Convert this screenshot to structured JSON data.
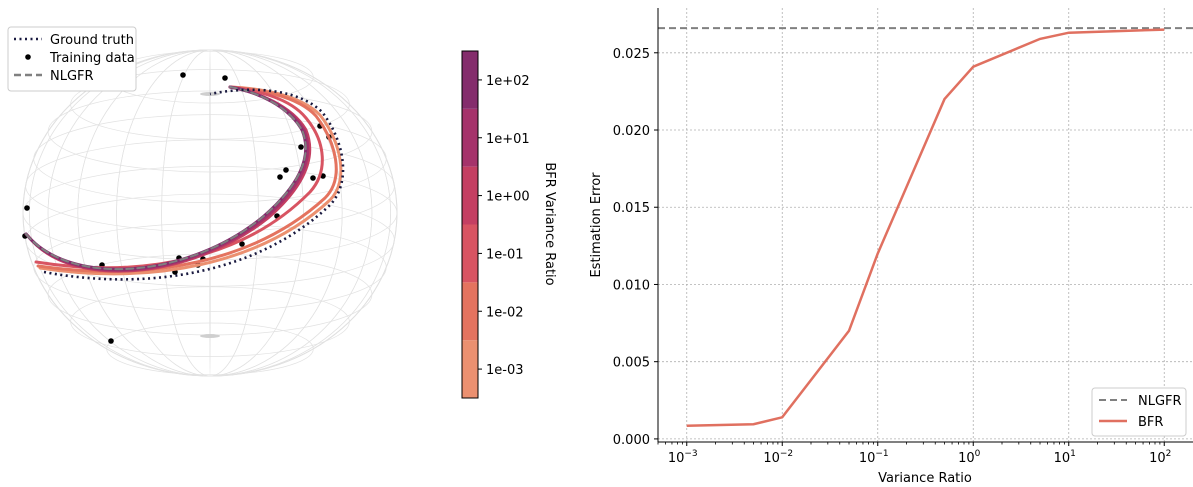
{
  "colors": {
    "ground_truth": "#1a1a40",
    "training": "#000000",
    "nlgfr": "#808080",
    "bfr": "#e07060",
    "colormap": [
      "#eb9070",
      "#e4735f",
      "#d85462",
      "#c43f62",
      "#a5336b",
      "#842d6c"
    ]
  },
  "left_panel": {
    "legend": [
      "Ground truth",
      "Training data",
      "NLGFR"
    ],
    "colorbar": {
      "label": "BFR Variance Ratio",
      "ticks": [
        "1e-03",
        "1e-02",
        "1e-01",
        "1e+00",
        "1e+01",
        "1e+02"
      ]
    }
  },
  "chart_data": {
    "type": "line",
    "xlabel": "Variance Ratio",
    "ylabel": "Estimation Error",
    "xscale": "log",
    "xlim": [
      0.0005,
      200
    ],
    "ylim": [
      -0.0002,
      0.0279
    ],
    "grid": true,
    "legend_position": "lower-right",
    "x_ticks": [
      {
        "value": 0.001,
        "base": "10",
        "exp": "−3"
      },
      {
        "value": 0.01,
        "base": "10",
        "exp": "−2"
      },
      {
        "value": 0.1,
        "base": "10",
        "exp": "−1"
      },
      {
        "value": 1,
        "base": "10",
        "exp": "0"
      },
      {
        "value": 10,
        "base": "10",
        "exp": "1"
      },
      {
        "value": 100,
        "base": "10",
        "exp": "2"
      }
    ],
    "y_ticks": [
      "0.000",
      "0.005",
      "0.010",
      "0.015",
      "0.020",
      "0.025"
    ],
    "series": [
      {
        "name": "NLGFR",
        "style": "dashed",
        "color": "#808080",
        "y": 0.0266
      },
      {
        "name": "BFR",
        "style": "solid",
        "color": "#e07060",
        "x": [
          0.001,
          0.005,
          0.01,
          0.05,
          0.1,
          0.5,
          1,
          5,
          10,
          100
        ],
        "y": [
          0.00085,
          0.00095,
          0.0014,
          0.007,
          0.012,
          0.022,
          0.0241,
          0.0259,
          0.0263,
          0.0265
        ]
      }
    ]
  }
}
